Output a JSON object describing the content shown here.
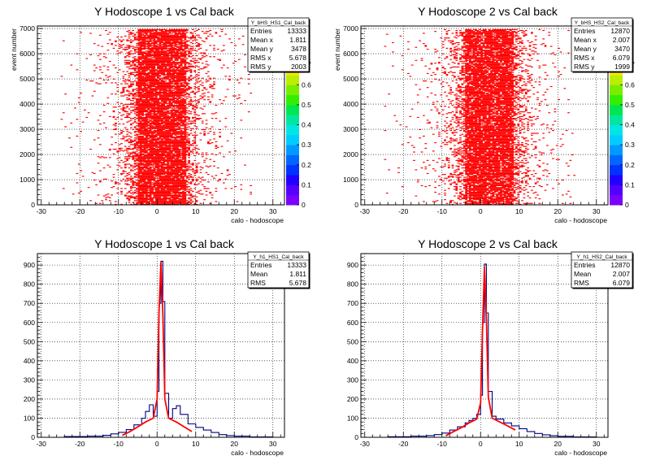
{
  "chart_data": [
    {
      "type": "heatmap",
      "title": "Y Hodoscope 1 vs Cal back",
      "xlabel": "calo - hodoscope",
      "ylabel": "event number",
      "xlim": [
        -31,
        33
      ],
      "ylim": [
        0,
        7100
      ],
      "xticks": [
        -30,
        -20,
        -10,
        0,
        10,
        20,
        30
      ],
      "yticks": [
        0,
        1000,
        2000,
        3000,
        4000,
        5000,
        6000,
        7000
      ],
      "grid": true,
      "core": {
        "x_from": -5,
        "x_to": 7,
        "y_from": 0,
        "y_to": 7000
      },
      "palette": {
        "range": [
          0,
          0.8
        ],
        "ticks": [
          0,
          0.1,
          0.2,
          0.3,
          0.4,
          0.5,
          0.6,
          0.7
        ]
      },
      "stats": {
        "name": "Y_bHS_HS1_Cal_back",
        "rows": [
          {
            "label": "Entries",
            "value": "13333"
          },
          {
            "label": "Mean x",
            "value": "1.811"
          },
          {
            "label": "Mean y",
            "value": "3478"
          },
          {
            "label": "RMS x",
            "value": "5.678"
          },
          {
            "label": "RMS y",
            "value": "2003"
          }
        ]
      }
    },
    {
      "type": "heatmap",
      "title": "Y Hodoscope 2 vs Cal back",
      "xlabel": "calo - hodoscope",
      "ylabel": "event number",
      "xlim": [
        -31,
        33
      ],
      "ylim": [
        0,
        7100
      ],
      "xticks": [
        -30,
        -20,
        -10,
        0,
        10,
        20,
        30
      ],
      "yticks": [
        0,
        1000,
        2000,
        3000,
        4000,
        5000,
        6000,
        7000
      ],
      "grid": true,
      "core": {
        "x_from": -4,
        "x_to": 8,
        "y_from": 0,
        "y_to": 7000
      },
      "palette": {
        "range": [
          0,
          0.8
        ],
        "ticks": [
          0,
          0.1,
          0.2,
          0.3,
          0.4,
          0.5,
          0.6,
          0.7
        ]
      },
      "stats": {
        "name": "Y_bHS_HS2_Cal_back",
        "rows": [
          {
            "label": "Entries",
            "value": "12870"
          },
          {
            "label": "Mean x",
            "value": "2.007"
          },
          {
            "label": "Mean y",
            "value": "3470"
          },
          {
            "label": "RMS x",
            "value": "6.079"
          },
          {
            "label": "RMS y",
            "value": "1999"
          }
        ]
      }
    },
    {
      "type": "line",
      "title": "Y Hodoscope 1 vs Cal back",
      "xlabel": "calo - hodoscope",
      "ylabel": "",
      "xlim": [
        -31,
        33
      ],
      "ylim": [
        0,
        960
      ],
      "xticks": [
        -30,
        -20,
        -10,
        0,
        10,
        20,
        30
      ],
      "yticks": [
        0,
        100,
        200,
        300,
        400,
        500,
        600,
        700,
        800,
        900
      ],
      "grid": true,
      "histogram": {
        "x": [
          -30,
          -24,
          -18,
          -14,
          -12,
          -10,
          -8,
          -6,
          -4,
          -3,
          -2,
          -1,
          0,
          0.5,
          1,
          1.5,
          2,
          3,
          4,
          5,
          6,
          8,
          10,
          12,
          14,
          16,
          18,
          20,
          24,
          30
        ],
        "y": [
          0,
          4,
          6,
          10,
          18,
          26,
          40,
          65,
          100,
          135,
          170,
          110,
          240,
          700,
          920,
          710,
          230,
          100,
          150,
          165,
          120,
          70,
          52,
          38,
          25,
          14,
          9,
          6,
          2,
          0
        ]
      },
      "fit": {
        "x": [
          -9,
          -7,
          -5,
          -3,
          -1,
          0,
          0.5,
          1,
          1.5,
          2,
          3,
          5,
          7,
          9
        ],
        "y": [
          10,
          30,
          55,
          80,
          100,
          200,
          650,
          915,
          640,
          200,
          100,
          80,
          55,
          30
        ]
      },
      "stats": {
        "name": "Y_h1_HS1_Cal_back",
        "rows": [
          {
            "label": "Entries",
            "value": "13333"
          },
          {
            "label": "Mean",
            "value": "1.811"
          },
          {
            "label": "RMS",
            "value": "5.678"
          }
        ]
      }
    },
    {
      "type": "line",
      "title": "Y Hodoscope 2 vs Cal back",
      "xlabel": "calo - hodoscope",
      "ylabel": "",
      "xlim": [
        -31,
        33
      ],
      "ylim": [
        0,
        960
      ],
      "xticks": [
        -30,
        -20,
        -10,
        0,
        10,
        20,
        30
      ],
      "yticks": [
        0,
        100,
        200,
        300,
        400,
        500,
        600,
        700,
        800,
        900
      ],
      "grid": true,
      "histogram": {
        "x": [
          -30,
          -24,
          -18,
          -14,
          -12,
          -10,
          -8,
          -6,
          -4,
          -3,
          -2,
          -1,
          0,
          0.5,
          1,
          1.5,
          2,
          3,
          4,
          6,
          8,
          10,
          12,
          14,
          16,
          18,
          20,
          24,
          30
        ],
        "y": [
          0,
          3,
          6,
          9,
          14,
          22,
          38,
          55,
          75,
          88,
          100,
          120,
          220,
          600,
          905,
          650,
          240,
          110,
          95,
          75,
          60,
          45,
          30,
          20,
          13,
          8,
          5,
          2,
          0
        ]
      },
      "fit": {
        "x": [
          -9,
          -7,
          -5,
          -3,
          -1,
          0,
          0.5,
          1,
          1.5,
          2,
          3,
          5,
          7,
          9
        ],
        "y": [
          8,
          30,
          50,
          75,
          95,
          180,
          560,
          890,
          620,
          210,
          100,
          80,
          60,
          38
        ]
      },
      "stats": {
        "name": "Y_h1_HS2_Cal_back",
        "rows": [
          {
            "label": "Entries",
            "value": "12870"
          },
          {
            "label": "Mean",
            "value": "2.007"
          },
          {
            "label": "RMS",
            "value": "6.079"
          }
        ]
      }
    }
  ]
}
